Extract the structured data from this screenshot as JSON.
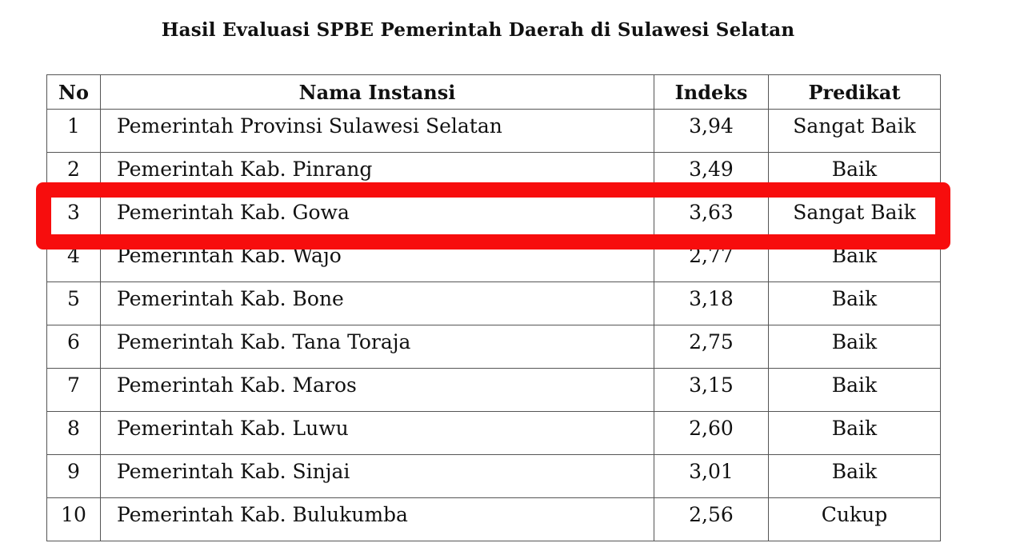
{
  "title": "Hasil Evaluasi SPBE Pemerintah Daerah di Sulawesi Selatan",
  "columns": [
    "No",
    "Nama Instansi",
    "Indeks",
    "Predikat"
  ],
  "rows": [
    {
      "no": "1",
      "nama": "Pemerintah Provinsi Sulawesi Selatan",
      "indeks": "3,94",
      "predikat": "Sangat Baik"
    },
    {
      "no": "2",
      "nama": "Pemerintah Kab. Pinrang",
      "indeks": "3,49",
      "predikat": "Baik"
    },
    {
      "no": "3",
      "nama": "Pemerintah Kab. Gowa",
      "indeks": "3,63",
      "predikat": "Sangat Baik"
    },
    {
      "no": "4",
      "nama": "Pemerintah Kab. Wajo",
      "indeks": "2,77",
      "predikat": "Baik"
    },
    {
      "no": "5",
      "nama": "Pemerintah Kab. Bone",
      "indeks": "3,18",
      "predikat": "Baik"
    },
    {
      "no": "6",
      "nama": "Pemerintah Kab. Tana Toraja",
      "indeks": "2,75",
      "predikat": "Baik"
    },
    {
      "no": "7",
      "nama": "Pemerintah Kab. Maros",
      "indeks": "3,15",
      "predikat": "Baik"
    },
    {
      "no": "8",
      "nama": "Pemerintah Kab. Luwu",
      "indeks": "2,60",
      "predikat": "Baik"
    },
    {
      "no": "9",
      "nama": "Pemerintah Kab. Sinjai",
      "indeks": "3,01",
      "predikat": "Baik"
    },
    {
      "no": "10",
      "nama": "Pemerintah Kab. Bulukumba",
      "indeks": "2,56",
      "predikat": "Cukup"
    }
  ],
  "highlight": {
    "row_no": "3",
    "color": "#f70d0d"
  }
}
